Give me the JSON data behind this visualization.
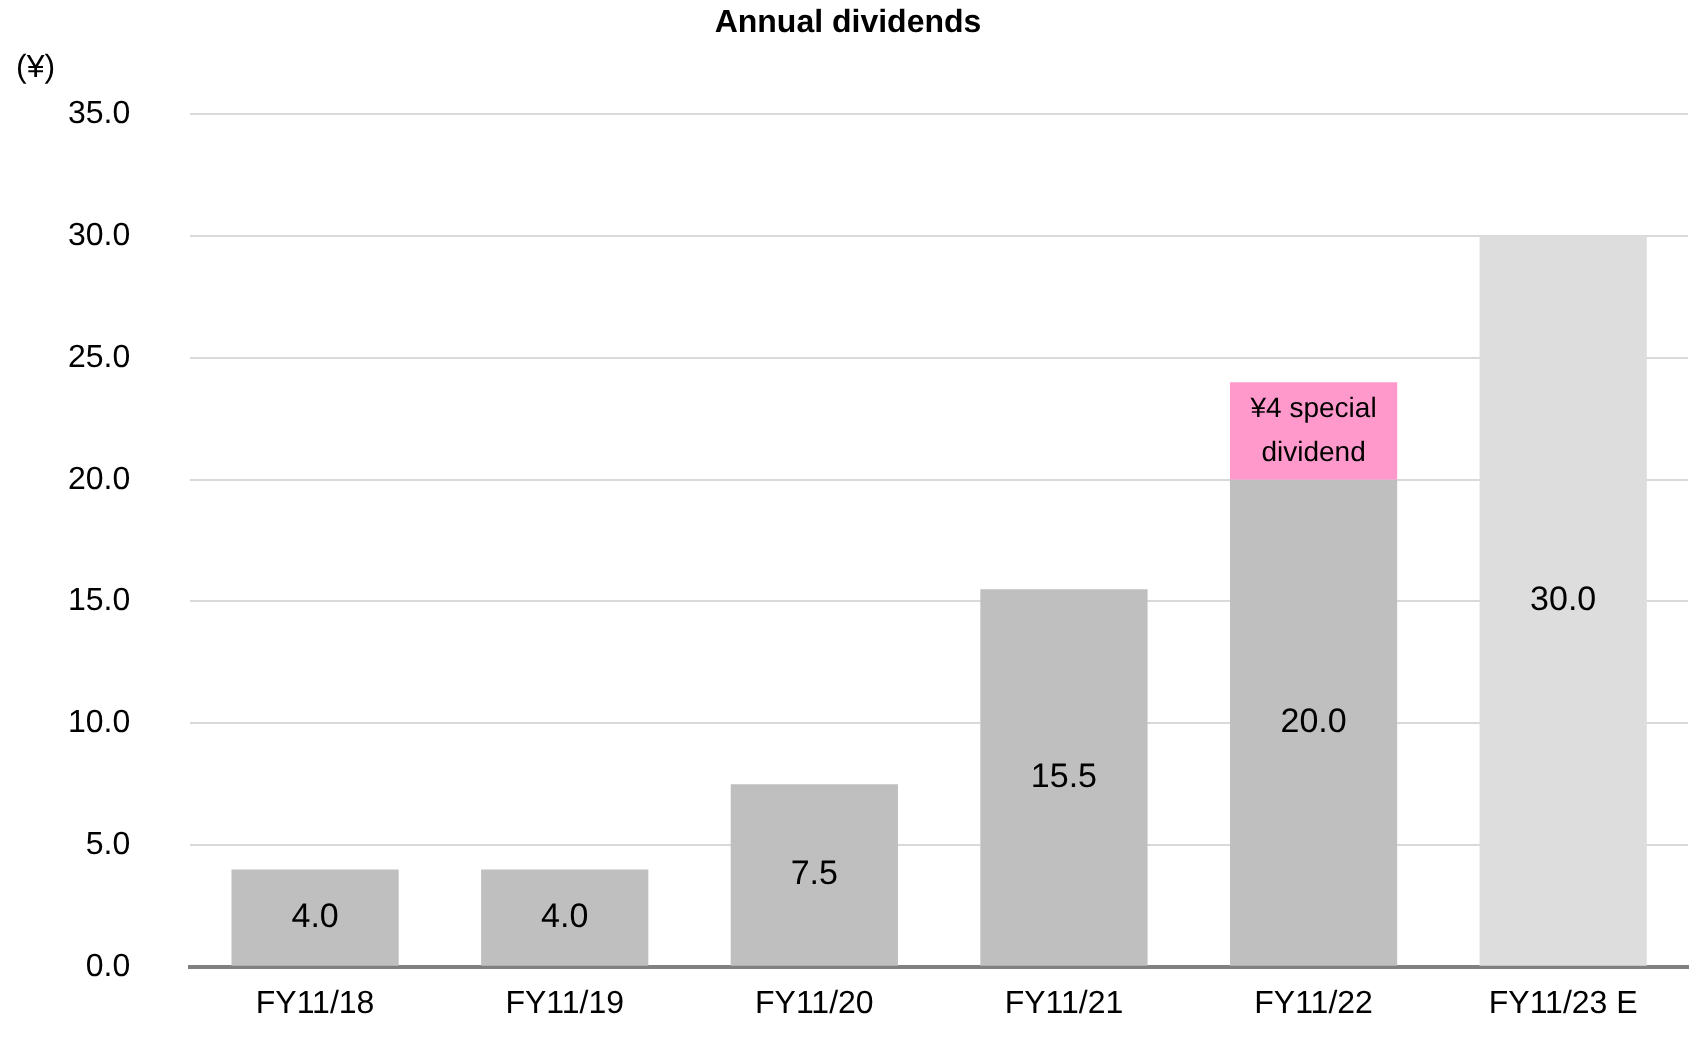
{
  "chart_data": {
    "type": "bar",
    "title": "Annual dividends",
    "ylabel": "(¥)",
    "categories": [
      "FY11/18",
      "FY11/19",
      "FY11/20",
      "FY11/21",
      "FY11/22",
      "FY11/23 E"
    ],
    "stacked": true,
    "series": [
      {
        "colors": [
          "#bfbfbf",
          "#bfbfbf",
          "#bfbfbf",
          "#bfbfbf",
          "#bfbfbf",
          "#dddddd"
        ],
        "values": [
          4.0,
          4.0,
          7.5,
          15.5,
          20.0,
          30.0
        ],
        "value_labels": [
          "4.0",
          "4.0",
          "7.5",
          "15.5",
          "20.0",
          "30.0"
        ]
      },
      {
        "color": "#ff99cc",
        "values": [
          null,
          null,
          null,
          null,
          4.0,
          null
        ],
        "value_labels": [
          null,
          null,
          null,
          null,
          "¥4 special dividend",
          null
        ]
      }
    ],
    "ylim": [
      0,
      35
    ],
    "yticks": [
      {
        "value": 0,
        "label": "0.0"
      },
      {
        "value": 5,
        "label": "5.0"
      },
      {
        "value": 10,
        "label": "10.0"
      },
      {
        "value": 15,
        "label": "15.0"
      },
      {
        "value": 20,
        "label": "20.0"
      },
      {
        "value": 25,
        "label": "25.0"
      },
      {
        "value": 30,
        "label": "30.0"
      },
      {
        "value": 35,
        "label": "35.0"
      }
    ],
    "grid": "y",
    "legend": false
  }
}
